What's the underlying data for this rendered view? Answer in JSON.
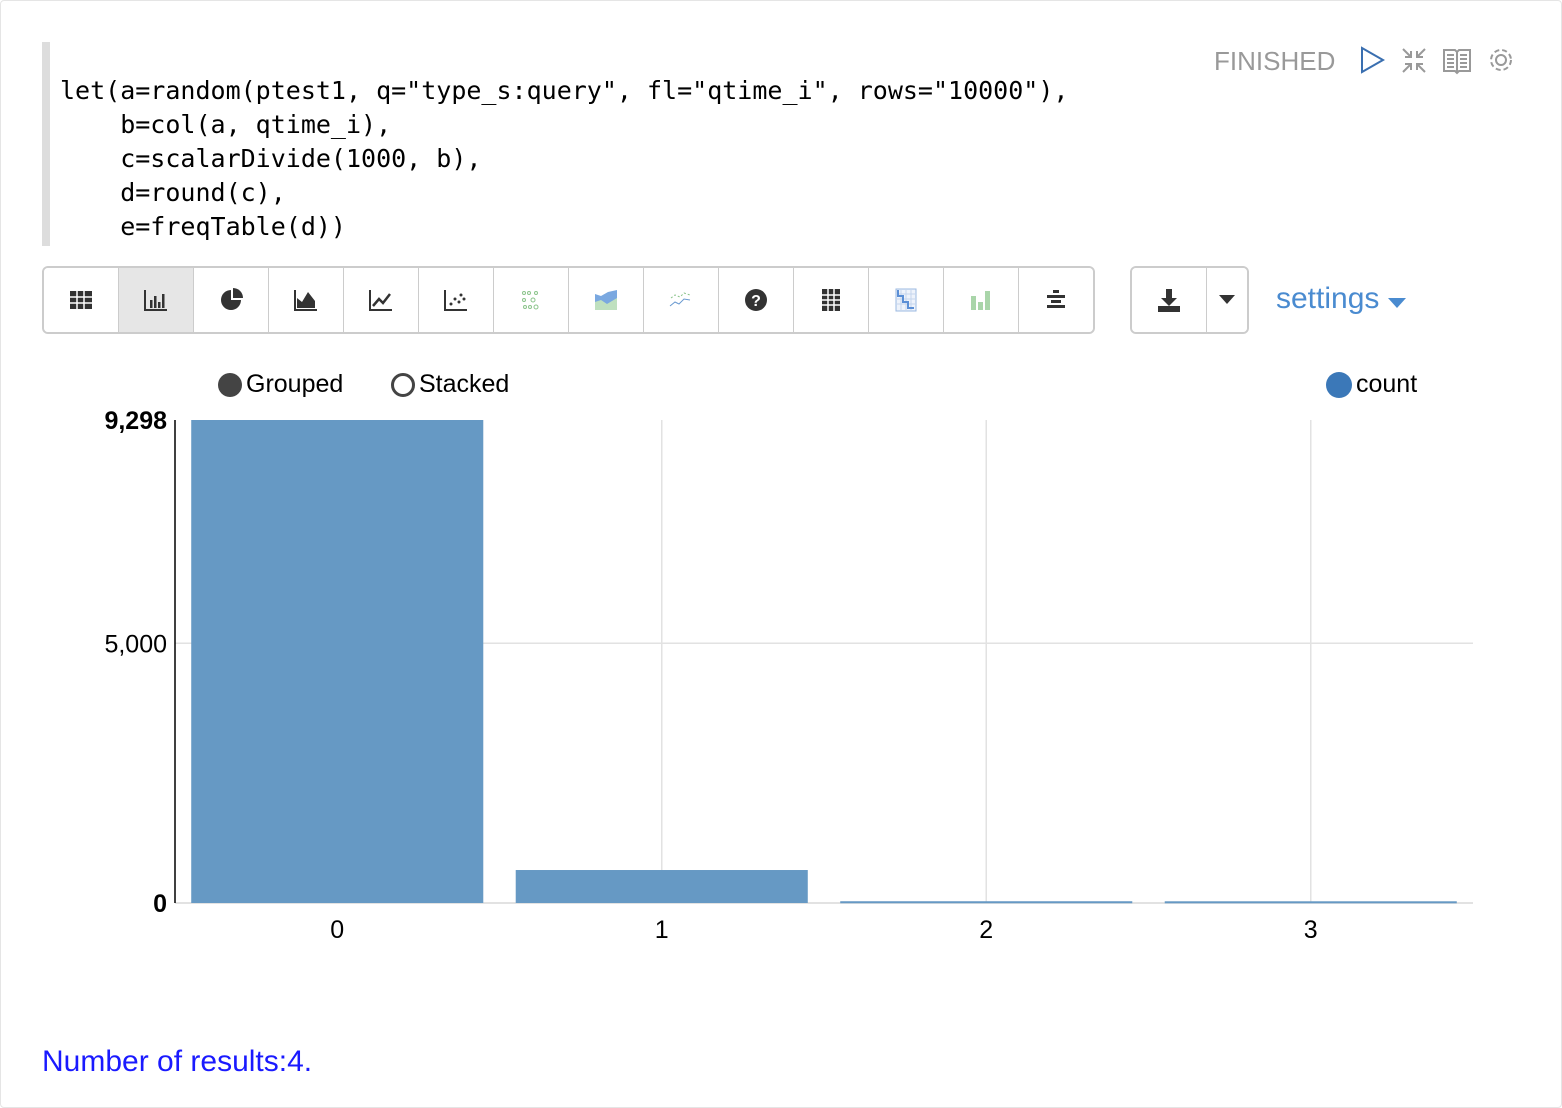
{
  "code": [
    "let(a=random(ptest1, q=\"type_s:query\", fl=\"qtime_i\", rows=\"10000\"),",
    "    b=col(a, qtime_i),",
    "    c=scalarDivide(1000, b),",
    "    d=round(c),",
    "    e=freqTable(d))"
  ],
  "status": "FINISHED",
  "header_icons": [
    "play-icon",
    "collapse-icon",
    "book-icon",
    "gear-icon"
  ],
  "toolbar": {
    "icons": [
      "table-icon",
      "bar-chart-icon",
      "pie-chart-icon",
      "area-chart-icon",
      "line-chart-icon",
      "scatter-chart-icon",
      "bubble-chart-icon",
      "stacked-area-icon",
      "multi-line-icon",
      "help-icon",
      "grid-icon",
      "heatmap-icon",
      "histogram-icon",
      "align-center-icon"
    ],
    "active": 1,
    "download_icon": "download-icon",
    "dropdown_icon": "caret-down-icon",
    "settings_label": "settings"
  },
  "legend": {
    "grouped": "Grouped",
    "stacked": "Stacked",
    "series": "count"
  },
  "colors": {
    "bar": "#6699c4",
    "accent": "#4a8bd0",
    "series_dot": "#3b78b8"
  },
  "chart_data": {
    "type": "bar",
    "categories": [
      "0",
      "1",
      "2",
      "3"
    ],
    "series": [
      {
        "name": "count",
        "values": [
          9298,
          635,
          34,
          33
        ]
      }
    ],
    "ylim": [
      0,
      9298
    ],
    "yticks": [
      "0",
      "5,000",
      "9,298"
    ],
    "grid": true,
    "legend": "top-right",
    "mode": "grouped"
  },
  "footer": "Number of results:4."
}
